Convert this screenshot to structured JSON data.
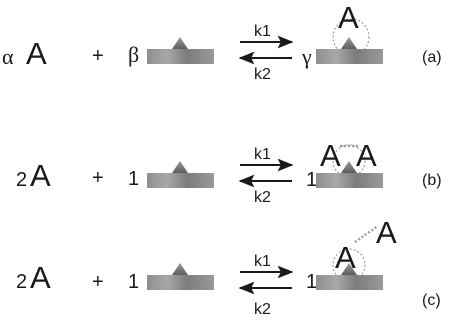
{
  "rows": [
    {
      "coef_a": "α",
      "species": "A",
      "plus": "+",
      "coef_s": "β",
      "k_forward": "k1",
      "k_backward": "k2",
      "coef_p": "γ",
      "product_label": "A",
      "row_label": "(a)"
    },
    {
      "coef_a": "2",
      "species": "A",
      "plus": "+",
      "coef_s": "1",
      "k_forward": "k1",
      "k_backward": "k2",
      "coef_p": "1",
      "product_label_1": "A",
      "product_label_2": "A",
      "row_label": "(b)"
    },
    {
      "coef_a": "2",
      "species": "A",
      "plus": "+",
      "coef_s": "1",
      "k_forward": "k1",
      "k_backward": "k2",
      "coef_p": "1",
      "product_label_1": "A",
      "product_label_2": "A",
      "row_label": "(c)"
    }
  ],
  "colors": {
    "text": "#1a1a1a",
    "surface_light": "#9c9c9c",
    "surface_dark": "#6e6e6e",
    "site": "#7a7a7a",
    "bond_dotted": "#a0a0a0"
  }
}
